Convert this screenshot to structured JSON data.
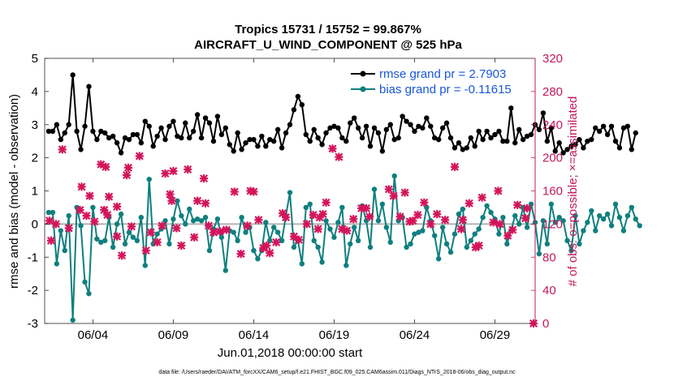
{
  "chart_data": {
    "type": "line",
    "title_line1": "Tropics 15731 / 15752 = 99.867%",
    "title_line2": "AIRCRAFT_U_WIND_COMPONENT @ 525 hPa",
    "xlabel": "Jun.01,2018 00:00:00 start",
    "ylabel_left": "rmse and bias (model - observation)",
    "ylabel_right": "# of obs: o=possible; ×=assimilated",
    "xlim": [
      1,
      31.5
    ],
    "ylim_left": [
      -3,
      5
    ],
    "ylim_right": [
      0,
      320
    ],
    "x_ticks": [
      {
        "x": 4,
        "label": "06/04"
      },
      {
        "x": 9,
        "label": "06/09"
      },
      {
        "x": 14,
        "label": "06/14"
      },
      {
        "x": 19,
        "label": "06/19"
      },
      {
        "x": 24,
        "label": "06/24"
      },
      {
        "x": 29,
        "label": "06/29"
      }
    ],
    "y_ticks_left": [
      "-3",
      "-2",
      "-1",
      "0",
      "1",
      "2",
      "3",
      "4",
      "5"
    ],
    "y_ticks_right": [
      "0",
      "40",
      "80",
      "120",
      "160",
      "200",
      "240",
      "280",
      "320"
    ],
    "legend": {
      "position": "top-right"
    },
    "colors": {
      "rmse": "#000000",
      "bias": "#0f7f7f",
      "obs": "#d4145a",
      "legend_text": "#1a56db",
      "zero_line": "#b3b3b3",
      "right_axis": "#c2185b"
    },
    "x_start": 1.25,
    "x_step": 0.25,
    "series": [
      {
        "name": "rmse grand pr = 2.7903",
        "axis": "left",
        "values": [
          2.8,
          2.8,
          3.0,
          2.55,
          2.75,
          3.0,
          4.5,
          2.8,
          2.25,
          2.95,
          4.15,
          2.8,
          2.55,
          2.8,
          2.75,
          2.6,
          2.65,
          2.45,
          2.15,
          2.6,
          2.55,
          2.7,
          2.7,
          2.45,
          3.1,
          2.95,
          2.35,
          2.65,
          2.9,
          2.55,
          2.95,
          3.1,
          2.65,
          2.6,
          3.05,
          2.6,
          2.8,
          3.3,
          2.6,
          3.2,
          3.05,
          2.5,
          3.25,
          2.7,
          2.9,
          2.4,
          2.2,
          2.75,
          2.25,
          2.45,
          2.55,
          2.55,
          2.35,
          2.65,
          2.35,
          2.55,
          2.5,
          2.85,
          2.3,
          2.75,
          3.0,
          3.45,
          3.85,
          3.6,
          2.7,
          2.5,
          2.85,
          2.6,
          2.4,
          2.75,
          2.9,
          2.95,
          2.9,
          2.6,
          2.5,
          3.05,
          3.2,
          2.9,
          2.6,
          2.95,
          2.35,
          2.9,
          2.75,
          2.2,
          2.85,
          3.0,
          2.55,
          2.6,
          3.25,
          3.1,
          3.0,
          2.8,
          2.95,
          2.9,
          3.2,
          2.95,
          2.6,
          2.55,
          2.9,
          3.05,
          2.6,
          2.3,
          2.45,
          2.25,
          2.3,
          2.6,
          2.35,
          2.8,
          2.55,
          2.8,
          2.6,
          2.7,
          2.8,
          2.5,
          2.5,
          3.5,
          2.45,
          2.85,
          2.55,
          2.65,
          2.7,
          3.0,
          2.85,
          3.35,
          2.5,
          2.9,
          2.2,
          2.45,
          2.15,
          2.25,
          2.35,
          2.4,
          2.55,
          2.3,
          2.5,
          2.55,
          2.9,
          2.8,
          2.95,
          2.7,
          2.95,
          2.5,
          2.3,
          2.9,
          2.95,
          2.25,
          2.75
        ]
      },
      {
        "name": "bias grand pr = -0.11615",
        "axis": "left",
        "values": [
          0.35,
          0.35,
          -1.2,
          -0.2,
          -0.8,
          0.25,
          -2.9,
          0.5,
          -0.05,
          -1.75,
          -2.1,
          0.5,
          -0.45,
          -0.55,
          -0.5,
          0.2,
          -0.7,
          0.0,
          0.3,
          -0.6,
          -0.25,
          -0.4,
          -0.5,
          0.2,
          -1.25,
          1.35,
          -0.6,
          -0.3,
          -0.15,
          0.1,
          -0.6,
          0.15,
          0.7,
          0.25,
          0.0,
          0.45,
          0.1,
          0.15,
          0.1,
          0.2,
          -0.8,
          -0.15,
          0.15,
          -0.4,
          -1.4,
          -0.2,
          -0.25,
          -0.5,
          0.2,
          -0.25,
          -0.1,
          -0.8,
          -1.05,
          -0.8,
          0.05,
          -0.5,
          -0.1,
          -0.25,
          -0.5,
          0.25,
          0.95,
          -0.7,
          -0.5,
          -1.2,
          0.5,
          0.6,
          -0.5,
          -0.7,
          -1.15,
          0.1,
          -0.15,
          -0.4,
          0.05,
          0.5,
          -1.25,
          -0.6,
          -0.1,
          -0.5,
          0.55,
          0.1,
          -0.7,
          1.05,
          0.1,
          0.6,
          -0.1,
          -0.55,
          1.45,
          0.1,
          0.2,
          -0.7,
          -0.6,
          -0.3,
          -0.25,
          -0.2,
          0.5,
          0.1,
          -0.35,
          -1.05,
          -0.1,
          -0.6,
          -0.85,
          -0.3,
          0.3,
          0.45,
          -0.7,
          -0.5,
          -0.3,
          -0.15,
          0.2,
          0.55,
          0.35,
          0.15,
          -0.3,
          0.2,
          -0.6,
          -0.2,
          0.25,
          0.0,
          0.5,
          -0.1,
          0.6,
          0.05,
          -0.9,
          0.1,
          -0.6,
          0.6,
          0.05,
          0.2,
          0.1,
          -0.5,
          -0.8,
          0.25,
          -0.6,
          -0.2,
          0.05,
          0.4,
          -0.2,
          0.25,
          0.15,
          0.3,
          -0.05,
          0.6,
          0.2,
          -0.2,
          0.25,
          0.5,
          0.15,
          -0.05
        ]
      },
      {
        "name": "obs assimilated",
        "axis": "right",
        "points": [
          [
            1.3,
            124
          ],
          [
            1.4,
            100
          ],
          [
            1.7,
            120
          ],
          [
            2.1,
            210
          ],
          [
            2.5,
            115
          ],
          [
            3.2,
            137
          ],
          [
            3.3,
            165
          ],
          [
            3.6,
            130
          ],
          [
            3.8,
            154
          ],
          [
            4.1,
            123
          ],
          [
            4.5,
            192
          ],
          [
            4.7,
            137
          ],
          [
            4.8,
            189
          ],
          [
            4.9,
            131
          ],
          [
            5.0,
            153
          ],
          [
            5.5,
            141
          ],
          [
            5.5,
            105
          ],
          [
            5.8,
            82
          ],
          [
            6.1,
            179
          ],
          [
            6.2,
            188
          ],
          [
            6.4,
            117
          ],
          [
            6.9,
            202
          ],
          [
            7.3,
            88
          ],
          [
            7.6,
            110
          ],
          [
            8.0,
            98
          ],
          [
            8.3,
            118
          ],
          [
            8.5,
            181
          ],
          [
            8.9,
            148
          ],
          [
            8.8,
            156
          ],
          [
            9.0,
            184
          ],
          [
            9.2,
            115
          ],
          [
            9.5,
            94
          ],
          [
            9.9,
            186
          ],
          [
            10.3,
            104
          ],
          [
            10.5,
            148
          ],
          [
            10.9,
            175
          ],
          [
            11.0,
            145
          ],
          [
            11.2,
            118
          ],
          [
            11.5,
            110
          ],
          [
            11.9,
            111
          ],
          [
            12.3,
            113
          ],
          [
            12.8,
            159
          ],
          [
            13.2,
            84
          ],
          [
            13.6,
            118
          ],
          [
            13.8,
            160
          ],
          [
            14.0,
            159
          ],
          [
            14.3,
            125
          ],
          [
            14.6,
            91
          ],
          [
            14.8,
            94
          ],
          [
            15.0,
            85
          ],
          [
            15.4,
            98
          ],
          [
            15.8,
            133
          ],
          [
            16.0,
            128
          ],
          [
            16.5,
            105
          ],
          [
            16.8,
            101
          ],
          [
            17.3,
            120
          ],
          [
            17.7,
            131
          ],
          [
            18.0,
            114
          ],
          [
            18.1,
            128
          ],
          [
            18.3,
            132
          ],
          [
            18.5,
            146
          ],
          [
            18.9,
            211
          ],
          [
            19.3,
            201
          ],
          [
            19.5,
            114
          ],
          [
            19.8,
            112
          ],
          [
            20.2,
            126
          ],
          [
            20.7,
            139
          ],
          [
            21.0,
            139
          ],
          [
            21.2,
            129
          ],
          [
            22.4,
            162
          ],
          [
            22.7,
            154
          ],
          [
            23.1,
            129
          ],
          [
            23.4,
            158
          ],
          [
            23.7,
            123
          ],
          [
            23.9,
            124
          ],
          [
            24.2,
            131
          ],
          [
            24.6,
            146
          ],
          [
            25.0,
            120
          ],
          [
            25.4,
            132
          ],
          [
            25.9,
            125
          ],
          [
            26.5,
            189
          ],
          [
            26.9,
            114
          ],
          [
            27.0,
            125
          ],
          [
            27.4,
            145
          ],
          [
            27.8,
            92
          ],
          [
            28.0,
            94
          ],
          [
            28.2,
            152
          ],
          [
            28.9,
            122
          ],
          [
            29.2,
            160
          ],
          [
            29.3,
            120
          ],
          [
            29.8,
            106
          ],
          [
            30.1,
            113
          ],
          [
            30.4,
            143
          ],
          [
            30.9,
            127
          ],
          [
            31.0,
            139
          ],
          [
            31.4,
            0
          ]
        ]
      }
    ]
  },
  "footnote": "data file: /Users/raeder/DAI/ATM_forcXX/CAM6_setup/f.e21.FHIST_BGC.f09_025.CAM6assim.011/Diags_NTrS_2018-06/obs_diag_output.nc"
}
